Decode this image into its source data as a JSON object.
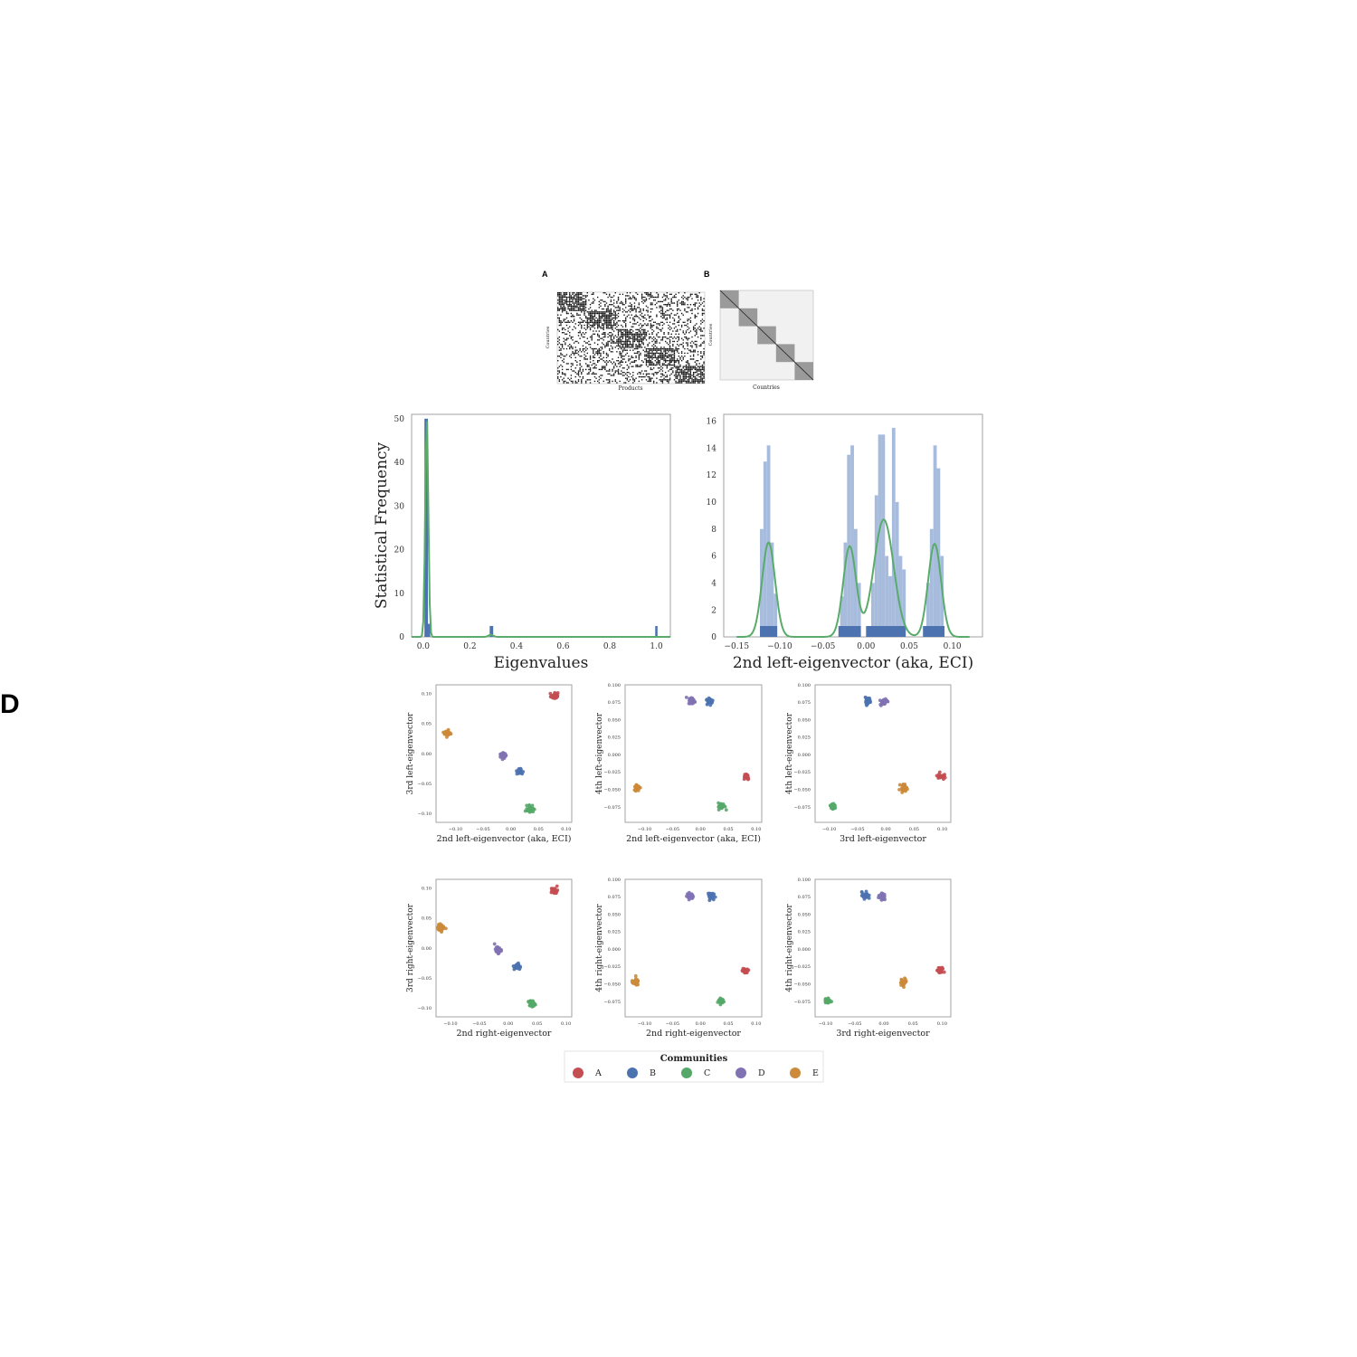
{
  "panels": {
    "a": "A",
    "b": "B",
    "d": "D"
  },
  "colors": {
    "A": "#c44e52",
    "B": "#4c72b0",
    "C": "#55a868",
    "D": "#8172b2",
    "E": "#cc8a3a",
    "hist": "#a7bcdd",
    "rug": "#4c72b0",
    "kde": "#5aab6a",
    "matrix": "#111111"
  },
  "matrix_a": {
    "ylabel": "Countries",
    "xlabel": "Products"
  },
  "matrix_b": {
    "ylabel": "Countries",
    "xlabel": "Countries"
  },
  "chart_data": [
    {
      "id": "eigenvalues",
      "type": "histogram",
      "xlabel": "Eigenvalues",
      "ylabel": "Statistical Frequency",
      "xlim": [
        -0.05,
        1.06
      ],
      "ylim": [
        0,
        51
      ],
      "xticks": [
        0.0,
        0.2,
        0.4,
        0.6,
        0.8,
        1.0
      ],
      "xtick_labels": [
        "0.0",
        "0.2",
        "0.4",
        "0.6",
        "0.8",
        "1.0"
      ],
      "yticks": [
        0,
        10,
        20,
        30,
        40,
        50
      ],
      "ytick_labels": [
        "0",
        "10",
        "20",
        "30",
        "40",
        "50"
      ],
      "bins": [
        {
          "x0": 0.005,
          "x1": 0.02,
          "count": 50
        },
        {
          "x0": 0.02,
          "x1": 0.03,
          "count": 3
        },
        {
          "x0": 0.285,
          "x1": 0.3,
          "count": 2.5
        },
        {
          "x0": 0.995,
          "x1": 1.005,
          "count": 2.5
        }
      ],
      "kde_peak": {
        "x": 0.015,
        "y": 51
      }
    },
    {
      "id": "eci",
      "type": "histogram",
      "xlabel": "2nd left-eigenvector (aka, ECI)",
      "ylabel": "",
      "xlim": [
        -0.165,
        0.135
      ],
      "ylim": [
        0,
        16.5
      ],
      "xticks": [
        -0.15,
        -0.1,
        -0.05,
        0.0,
        0.05,
        0.1
      ],
      "xtick_labels": [
        "−0.15",
        "−0.10",
        "−0.05",
        "0.00",
        "0.05",
        "0.10"
      ],
      "yticks": [
        0,
        2,
        4,
        6,
        8,
        10,
        12,
        14,
        16
      ],
      "ytick_labels": [
        "0",
        "2",
        "4",
        "6",
        "8",
        "10",
        "12",
        "14",
        "16"
      ],
      "bins": [
        {
          "x0": -0.123,
          "x1": -0.119,
          "count": 8
        },
        {
          "x0": -0.119,
          "x1": -0.115,
          "count": 13
        },
        {
          "x0": -0.115,
          "x1": -0.111,
          "count": 14.2
        },
        {
          "x0": -0.111,
          "x1": -0.107,
          "count": 7
        },
        {
          "x0": -0.107,
          "x1": -0.103,
          "count": 3.2
        },
        {
          "x0": -0.03,
          "x1": -0.026,
          "count": 3
        },
        {
          "x0": -0.026,
          "x1": -0.022,
          "count": 7
        },
        {
          "x0": -0.022,
          "x1": -0.018,
          "count": 13.5
        },
        {
          "x0": -0.018,
          "x1": -0.014,
          "count": 14.2
        },
        {
          "x0": -0.014,
          "x1": -0.01,
          "count": 8
        },
        {
          "x0": -0.01,
          "x1": -0.006,
          "count": 4
        },
        {
          "x0": 0.006,
          "x1": 0.01,
          "count": 4
        },
        {
          "x0": 0.01,
          "x1": 0.014,
          "count": 10.5
        },
        {
          "x0": 0.014,
          "x1": 0.018,
          "count": 15
        },
        {
          "x0": 0.018,
          "x1": 0.022,
          "count": 15
        },
        {
          "x0": 0.022,
          "x1": 0.026,
          "count": 6
        },
        {
          "x0": 0.026,
          "x1": 0.03,
          "count": 4.5
        },
        {
          "x0": 0.03,
          "x1": 0.034,
          "count": 15.5
        },
        {
          "x0": 0.034,
          "x1": 0.038,
          "count": 10
        },
        {
          "x0": 0.038,
          "x1": 0.042,
          "count": 6
        },
        {
          "x0": 0.042,
          "x1": 0.046,
          "count": 5
        },
        {
          "x0": 0.07,
          "x1": 0.074,
          "count": 4
        },
        {
          "x0": 0.074,
          "x1": 0.078,
          "count": 8
        },
        {
          "x0": 0.078,
          "x1": 0.082,
          "count": 14.2
        },
        {
          "x0": 0.082,
          "x1": 0.086,
          "count": 12.5
        },
        {
          "x0": 0.086,
          "x1": 0.09,
          "count": 6
        }
      ],
      "kde_peaks": [
        {
          "x": -0.113,
          "y": 7.0
        },
        {
          "x": -0.018,
          "y": 7.2
        },
        {
          "x": 0.0,
          "y": 5.0
        },
        {
          "x": 0.022,
          "y": 9.2
        },
        {
          "x": 0.06,
          "y": 4.0
        },
        {
          "x": 0.079,
          "y": 7.0
        }
      ],
      "rug_ranges": [
        [
          -0.123,
          -0.103
        ],
        [
          -0.032,
          -0.006
        ],
        [
          0.0,
          0.046
        ],
        [
          0.066,
          0.091
        ]
      ]
    },
    {
      "id": "s1",
      "type": "scatter",
      "xlabel": "2nd left-eigenvector (aka, ECI)",
      "ylabel": "3rd left-eigenvector",
      "xlim": [
        -0.135,
        0.11
      ],
      "ylim": [
        -0.115,
        0.115
      ],
      "xticks": [
        -0.1,
        -0.05,
        0.0,
        0.05,
        0.1
      ],
      "xtick_labels": [
        "−0.10",
        "−0.05",
        "0.00",
        "0.05",
        "0.10"
      ],
      "yticks": [
        -0.1,
        -0.05,
        0.0,
        0.05,
        0.1
      ],
      "ytick_labels": [
        "−0.10",
        "−0.05",
        "0.00",
        "0.05",
        "0.10"
      ],
      "clusters": [
        {
          "community": "A",
          "x": 0.079,
          "y": 0.096
        },
        {
          "community": "B",
          "x": 0.016,
          "y": -0.03
        },
        {
          "community": "C",
          "x": 0.036,
          "y": -0.092
        },
        {
          "community": "D",
          "x": -0.014,
          "y": -0.003
        },
        {
          "community": "E",
          "x": -0.114,
          "y": 0.034
        }
      ]
    },
    {
      "id": "s2",
      "type": "scatter",
      "xlabel": "2nd left-eigenvector (aka, ECI)",
      "ylabel": "4th left-eigenvector",
      "xlim": [
        -0.135,
        0.11
      ],
      "ylim": [
        -0.097,
        0.1
      ],
      "xticks": [
        -0.1,
        -0.05,
        0.0,
        0.05,
        0.1
      ],
      "xtick_labels": [
        "−0.10",
        "−0.05",
        "0.00",
        "0.05",
        "0.10"
      ],
      "yticks": [
        -0.075,
        -0.05,
        -0.025,
        0.0,
        0.025,
        0.05,
        0.075,
        0.1
      ],
      "ytick_labels": [
        "−0.075",
        "−0.050",
        "−0.025",
        "0.000",
        "0.025",
        "0.050",
        "0.075",
        "0.100"
      ],
      "clusters": [
        {
          "community": "A",
          "x": 0.082,
          "y": -0.031
        },
        {
          "community": "B",
          "x": 0.017,
          "y": 0.077
        },
        {
          "community": "C",
          "x": 0.038,
          "y": -0.074
        },
        {
          "community": "D",
          "x": -0.015,
          "y": 0.077
        },
        {
          "community": "E",
          "x": -0.113,
          "y": -0.047
        }
      ]
    },
    {
      "id": "s3",
      "type": "scatter",
      "xlabel": "3rd left-eigenvector",
      "ylabel": "4th left-eigenvector",
      "xlim": [
        -0.125,
        0.115
      ],
      "ylim": [
        -0.097,
        0.1
      ],
      "xticks": [
        -0.1,
        -0.05,
        0.0,
        0.05,
        0.1
      ],
      "xtick_labels": [
        "−0.10",
        "−0.05",
        "0.00",
        "0.05",
        "0.10"
      ],
      "yticks": [
        -0.075,
        -0.05,
        -0.025,
        0.0,
        0.025,
        0.05,
        0.075,
        0.1
      ],
      "ytick_labels": [
        "−0.075",
        "−0.050",
        "−0.025",
        "0.000",
        "0.025",
        "0.050",
        "0.075",
        "0.100"
      ],
      "clusters": [
        {
          "community": "A",
          "x": 0.097,
          "y": -0.031
        },
        {
          "community": "B",
          "x": -0.032,
          "y": 0.077
        },
        {
          "community": "C",
          "x": -0.094,
          "y": -0.074
        },
        {
          "community": "D",
          "x": -0.004,
          "y": 0.076
        },
        {
          "community": "E",
          "x": 0.032,
          "y": -0.047
        }
      ]
    },
    {
      "id": "s4",
      "type": "scatter",
      "xlabel": "2nd right-eigenvector",
      "ylabel": "3rd right-eigenvector",
      "xlim": [
        -0.125,
        0.11
      ],
      "ylim": [
        -0.115,
        0.115
      ],
      "xticks": [
        -0.1,
        -0.05,
        0.0,
        0.05,
        0.1
      ],
      "xtick_labels": [
        "−0.10",
        "−0.05",
        "0.00",
        "0.05",
        "0.10"
      ],
      "yticks": [
        -0.1,
        -0.05,
        0.0,
        0.05,
        0.1
      ],
      "ytick_labels": [
        "−0.10",
        "−0.05",
        "0.00",
        "0.05",
        "0.10"
      ],
      "clusters": [
        {
          "community": "A",
          "x": 0.08,
          "y": 0.096
        },
        {
          "community": "B",
          "x": 0.016,
          "y": -0.031
        },
        {
          "community": "C",
          "x": 0.04,
          "y": -0.093
        },
        {
          "community": "D",
          "x": -0.018,
          "y": -0.003
        },
        {
          "community": "E",
          "x": -0.116,
          "y": 0.034
        }
      ]
    },
    {
      "id": "s5",
      "type": "scatter",
      "xlabel": "2nd right-eigenvector",
      "ylabel": "4th right-eigenvector",
      "xlim": [
        -0.135,
        0.11
      ],
      "ylim": [
        -0.097,
        0.1
      ],
      "xticks": [
        -0.1,
        -0.05,
        0.0,
        0.05,
        0.1
      ],
      "xtick_labels": [
        "−0.10",
        "−0.05",
        "0.00",
        "0.05",
        "0.10"
      ],
      "yticks": [
        -0.075,
        -0.05,
        -0.025,
        0.0,
        0.025,
        0.05,
        0.075,
        0.1
      ],
      "ytick_labels": [
        "−0.075",
        "−0.050",
        "−0.025",
        "0.000",
        "0.025",
        "0.050",
        "0.075",
        "0.100"
      ],
      "clusters": [
        {
          "community": "A",
          "x": 0.081,
          "y": -0.031
        },
        {
          "community": "B",
          "x": 0.017,
          "y": 0.077
        },
        {
          "community": "C",
          "x": 0.037,
          "y": -0.074
        },
        {
          "community": "D",
          "x": -0.018,
          "y": 0.076
        },
        {
          "community": "E",
          "x": -0.117,
          "y": -0.047
        }
      ]
    },
    {
      "id": "s6",
      "type": "scatter",
      "xlabel": "3rd right-eigenvector",
      "ylabel": "4th right-eigenvector",
      "xlim": [
        -0.118,
        0.115
      ],
      "ylim": [
        -0.097,
        0.1
      ],
      "xticks": [
        -0.1,
        -0.05,
        0.0,
        0.05,
        0.1
      ],
      "xtick_labels": [
        "−0.10",
        "−0.05",
        "0.00",
        "0.05",
        "0.10"
      ],
      "yticks": [
        -0.075,
        -0.05,
        -0.025,
        0.0,
        0.025,
        0.05,
        0.075,
        0.1
      ],
      "ytick_labels": [
        "−0.075",
        "−0.050",
        "−0.025",
        "0.000",
        "0.025",
        "0.050",
        "0.075",
        "0.100"
      ],
      "clusters": [
        {
          "community": "A",
          "x": 0.097,
          "y": -0.031
        },
        {
          "community": "B",
          "x": -0.032,
          "y": 0.077
        },
        {
          "community": "C",
          "x": -0.096,
          "y": -0.074
        },
        {
          "community": "D",
          "x": -0.003,
          "y": 0.075
        },
        {
          "community": "E",
          "x": 0.034,
          "y": -0.047
        }
      ]
    }
  ],
  "legend": {
    "title": "Communities",
    "items": [
      "A",
      "B",
      "C",
      "D",
      "E"
    ]
  }
}
